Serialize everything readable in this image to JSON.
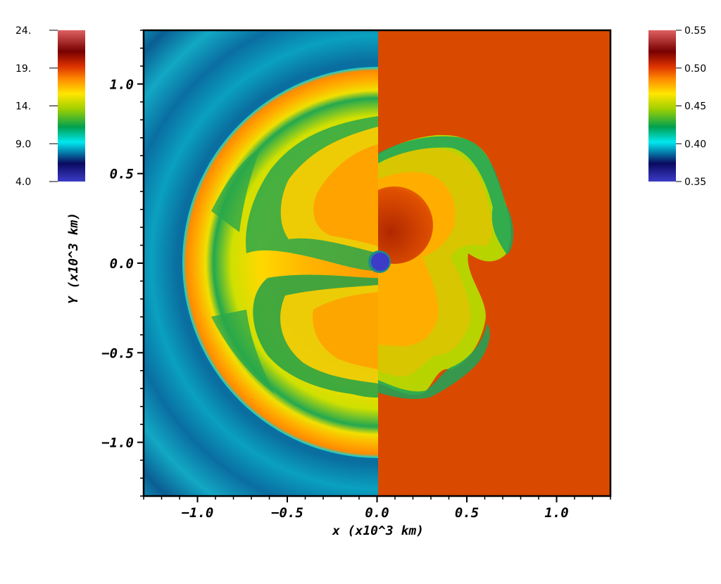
{
  "chart_data": {
    "type": "heatmap",
    "title": "",
    "xlabel": "x (x10^3 km)",
    "ylabel": "Y (x10^3 km)",
    "xlim": [
      -1.3,
      1.3
    ],
    "ylim": [
      -1.3,
      1.3
    ],
    "x_ticks": [
      {
        "value": -1.0,
        "label": "−1.0"
      },
      {
        "value": -0.5,
        "label": "−0.5"
      },
      {
        "value": 0.0,
        "label": "0.0"
      },
      {
        "value": 0.5,
        "label": "0.5"
      },
      {
        "value": 1.0,
        "label": "1.0"
      }
    ],
    "y_ticks": [
      {
        "value": 1.0,
        "label": "1.0"
      },
      {
        "value": 0.5,
        "label": "0.5"
      },
      {
        "value": 0.0,
        "label": "0.0"
      },
      {
        "value": -0.5,
        "label": "−0.5"
      },
      {
        "value": -1.0,
        "label": "−1.0"
      }
    ],
    "left_half": {
      "colorbar": {
        "range": [
          4.0,
          24.0
        ],
        "ticks": [
          {
            "value": 24,
            "label": "24."
          },
          {
            "value": 19,
            "label": "19."
          },
          {
            "value": 14,
            "label": "14."
          },
          {
            "value": 9,
            "label": "9.0"
          },
          {
            "value": 4,
            "label": "4.0"
          }
        ]
      },
      "background_value": 9.5,
      "shock_radius": 1.05
    },
    "right_half": {
      "colorbar": {
        "range": [
          0.35,
          0.55
        ],
        "ticks": [
          {
            "value": 0.55,
            "label": "0.55"
          },
          {
            "value": 0.5,
            "label": "0.50"
          },
          {
            "value": 0.45,
            "label": "0.45"
          },
          {
            "value": 0.4,
            "label": "0.40"
          },
          {
            "value": 0.35,
            "label": "0.35"
          }
        ]
      },
      "background_value": 0.5
    },
    "colormap": [
      "#3c3cc8",
      "#0a0a60",
      "#00e8f0",
      "#00a050",
      "#a0d000",
      "#ffe600",
      "#ff8800",
      "#dd3300",
      "#780000",
      "#e06060"
    ],
    "grid": false,
    "legend": "colorbars-left-and-right"
  }
}
